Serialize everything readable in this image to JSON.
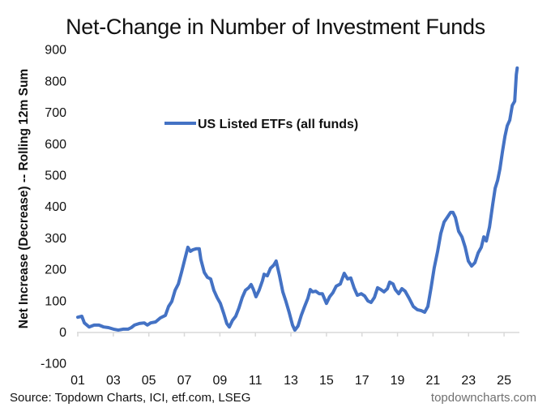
{
  "chart_data": {
    "type": "line",
    "title": "Net-Change in Number of Investment Funds",
    "xlabel": "",
    "ylabel": "Net Increase (Decrease) -- Rolling 12m Sum",
    "ylim": [
      -100,
      900
    ],
    "xlim": [
      2001,
      2025.9
    ],
    "yticks": [
      -100,
      0,
      100,
      200,
      300,
      400,
      500,
      600,
      700,
      800,
      900
    ],
    "xticks": [
      2001,
      2003,
      2005,
      2007,
      2009,
      2011,
      2013,
      2015,
      2017,
      2019,
      2021,
      2023,
      2025
    ],
    "xtick_labels": [
      "01",
      "03",
      "05",
      "07",
      "09",
      "11",
      "13",
      "15",
      "17",
      "19",
      "21",
      "23",
      "25"
    ],
    "grid": false,
    "legend": {
      "placement": "upper-left-center",
      "entries": [
        "US Listed ETFs (all funds)"
      ]
    },
    "series": [
      {
        "name": "US Listed ETFs (all funds)",
        "color": "#4472C4",
        "points": [
          [
            2001.0,
            46
          ],
          [
            2001.23,
            49
          ],
          [
            2001.37,
            28
          ],
          [
            2001.64,
            15
          ],
          [
            2001.92,
            21
          ],
          [
            2002.19,
            21
          ],
          [
            2002.46,
            15
          ],
          [
            2002.73,
            13
          ],
          [
            2003.01,
            8
          ],
          [
            2003.28,
            5
          ],
          [
            2003.55,
            8
          ],
          [
            2003.83,
            8
          ],
          [
            2004.01,
            13
          ],
          [
            2004.19,
            21
          ],
          [
            2004.47,
            26
          ],
          [
            2004.74,
            28
          ],
          [
            2004.92,
            21
          ],
          [
            2005.1,
            28
          ],
          [
            2005.38,
            31
          ],
          [
            2005.65,
            44
          ],
          [
            2005.93,
            52
          ],
          [
            2006.11,
            80
          ],
          [
            2006.29,
            96
          ],
          [
            2006.48,
            132
          ],
          [
            2006.66,
            152
          ],
          [
            2006.84,
            189
          ],
          [
            2007.02,
            230
          ],
          [
            2007.2,
            269
          ],
          [
            2007.34,
            256
          ],
          [
            2007.48,
            261
          ],
          [
            2007.66,
            264
          ],
          [
            2007.84,
            264
          ],
          [
            2007.93,
            230
          ],
          [
            2008.12,
            189
          ],
          [
            2008.3,
            173
          ],
          [
            2008.48,
            168
          ],
          [
            2008.66,
            132
          ],
          [
            2008.84,
            109
          ],
          [
            2009.03,
            90
          ],
          [
            2009.21,
            59
          ],
          [
            2009.39,
            26
          ],
          [
            2009.53,
            15
          ],
          [
            2009.71,
            36
          ],
          [
            2009.89,
            49
          ],
          [
            2010.07,
            75
          ],
          [
            2010.26,
            109
          ],
          [
            2010.44,
            132
          ],
          [
            2010.62,
            140
          ],
          [
            2010.76,
            150
          ],
          [
            2010.89,
            134
          ],
          [
            2011.03,
            111
          ],
          [
            2011.21,
            132
          ],
          [
            2011.4,
            163
          ],
          [
            2011.49,
            183
          ],
          [
            2011.67,
            178
          ],
          [
            2011.85,
            202
          ],
          [
            2012.03,
            212
          ],
          [
            2012.17,
            225
          ],
          [
            2012.36,
            178
          ],
          [
            2012.54,
            127
          ],
          [
            2012.72,
            96
          ],
          [
            2012.9,
            62
          ],
          [
            2013.09,
            21
          ],
          [
            2013.22,
            5
          ],
          [
            2013.4,
            18
          ],
          [
            2013.58,
            52
          ],
          [
            2013.77,
            80
          ],
          [
            2013.95,
            106
          ],
          [
            2014.09,
            134
          ],
          [
            2014.22,
            127
          ],
          [
            2014.4,
            129
          ],
          [
            2014.59,
            121
          ],
          [
            2014.77,
            121
          ],
          [
            2015.0,
            90
          ],
          [
            2015.18,
            111
          ],
          [
            2015.36,
            124
          ],
          [
            2015.55,
            145
          ],
          [
            2015.78,
            152
          ],
          [
            2016.0,
            186
          ],
          [
            2016.19,
            168
          ],
          [
            2016.37,
            171
          ],
          [
            2016.55,
            140
          ],
          [
            2016.74,
            116
          ],
          [
            2016.96,
            121
          ],
          [
            2017.15,
            114
          ],
          [
            2017.33,
            98
          ],
          [
            2017.51,
            93
          ],
          [
            2017.7,
            109
          ],
          [
            2017.88,
            140
          ],
          [
            2018.06,
            134
          ],
          [
            2018.24,
            127
          ],
          [
            2018.43,
            137
          ],
          [
            2018.56,
            158
          ],
          [
            2018.75,
            152
          ],
          [
            2018.88,
            134
          ],
          [
            2019.07,
            121
          ],
          [
            2019.25,
            137
          ],
          [
            2019.43,
            129
          ],
          [
            2019.66,
            106
          ],
          [
            2019.89,
            80
          ],
          [
            2020.12,
            70
          ],
          [
            2020.34,
            67
          ],
          [
            2020.53,
            62
          ],
          [
            2020.71,
            80
          ],
          [
            2020.89,
            140
          ],
          [
            2021.07,
            204
          ],
          [
            2021.26,
            256
          ],
          [
            2021.44,
            313
          ],
          [
            2021.62,
            349
          ],
          [
            2021.8,
            364
          ],
          [
            2021.99,
            380
          ],
          [
            2022.12,
            380
          ],
          [
            2022.26,
            364
          ],
          [
            2022.44,
            320
          ],
          [
            2022.63,
            302
          ],
          [
            2022.81,
            269
          ],
          [
            2022.99,
            225
          ],
          [
            2023.17,
            209
          ],
          [
            2023.36,
            220
          ],
          [
            2023.54,
            251
          ],
          [
            2023.72,
            269
          ],
          [
            2023.86,
            302
          ],
          [
            2024.0,
            289
          ],
          [
            2024.18,
            333
          ],
          [
            2024.36,
            406
          ],
          [
            2024.5,
            457
          ],
          [
            2024.64,
            483
          ],
          [
            2024.77,
            519
          ],
          [
            2024.91,
            574
          ],
          [
            2025.05,
            623
          ],
          [
            2025.18,
            656
          ],
          [
            2025.32,
            674
          ],
          [
            2025.46,
            721
          ],
          [
            2025.6,
            734
          ],
          [
            2025.69,
            819
          ],
          [
            2025.74,
            840
          ]
        ]
      }
    ]
  },
  "footer": {
    "source": "Source: Topdown Charts, ICI, etf.com, LSEG",
    "brand": "topdowncharts.com"
  }
}
